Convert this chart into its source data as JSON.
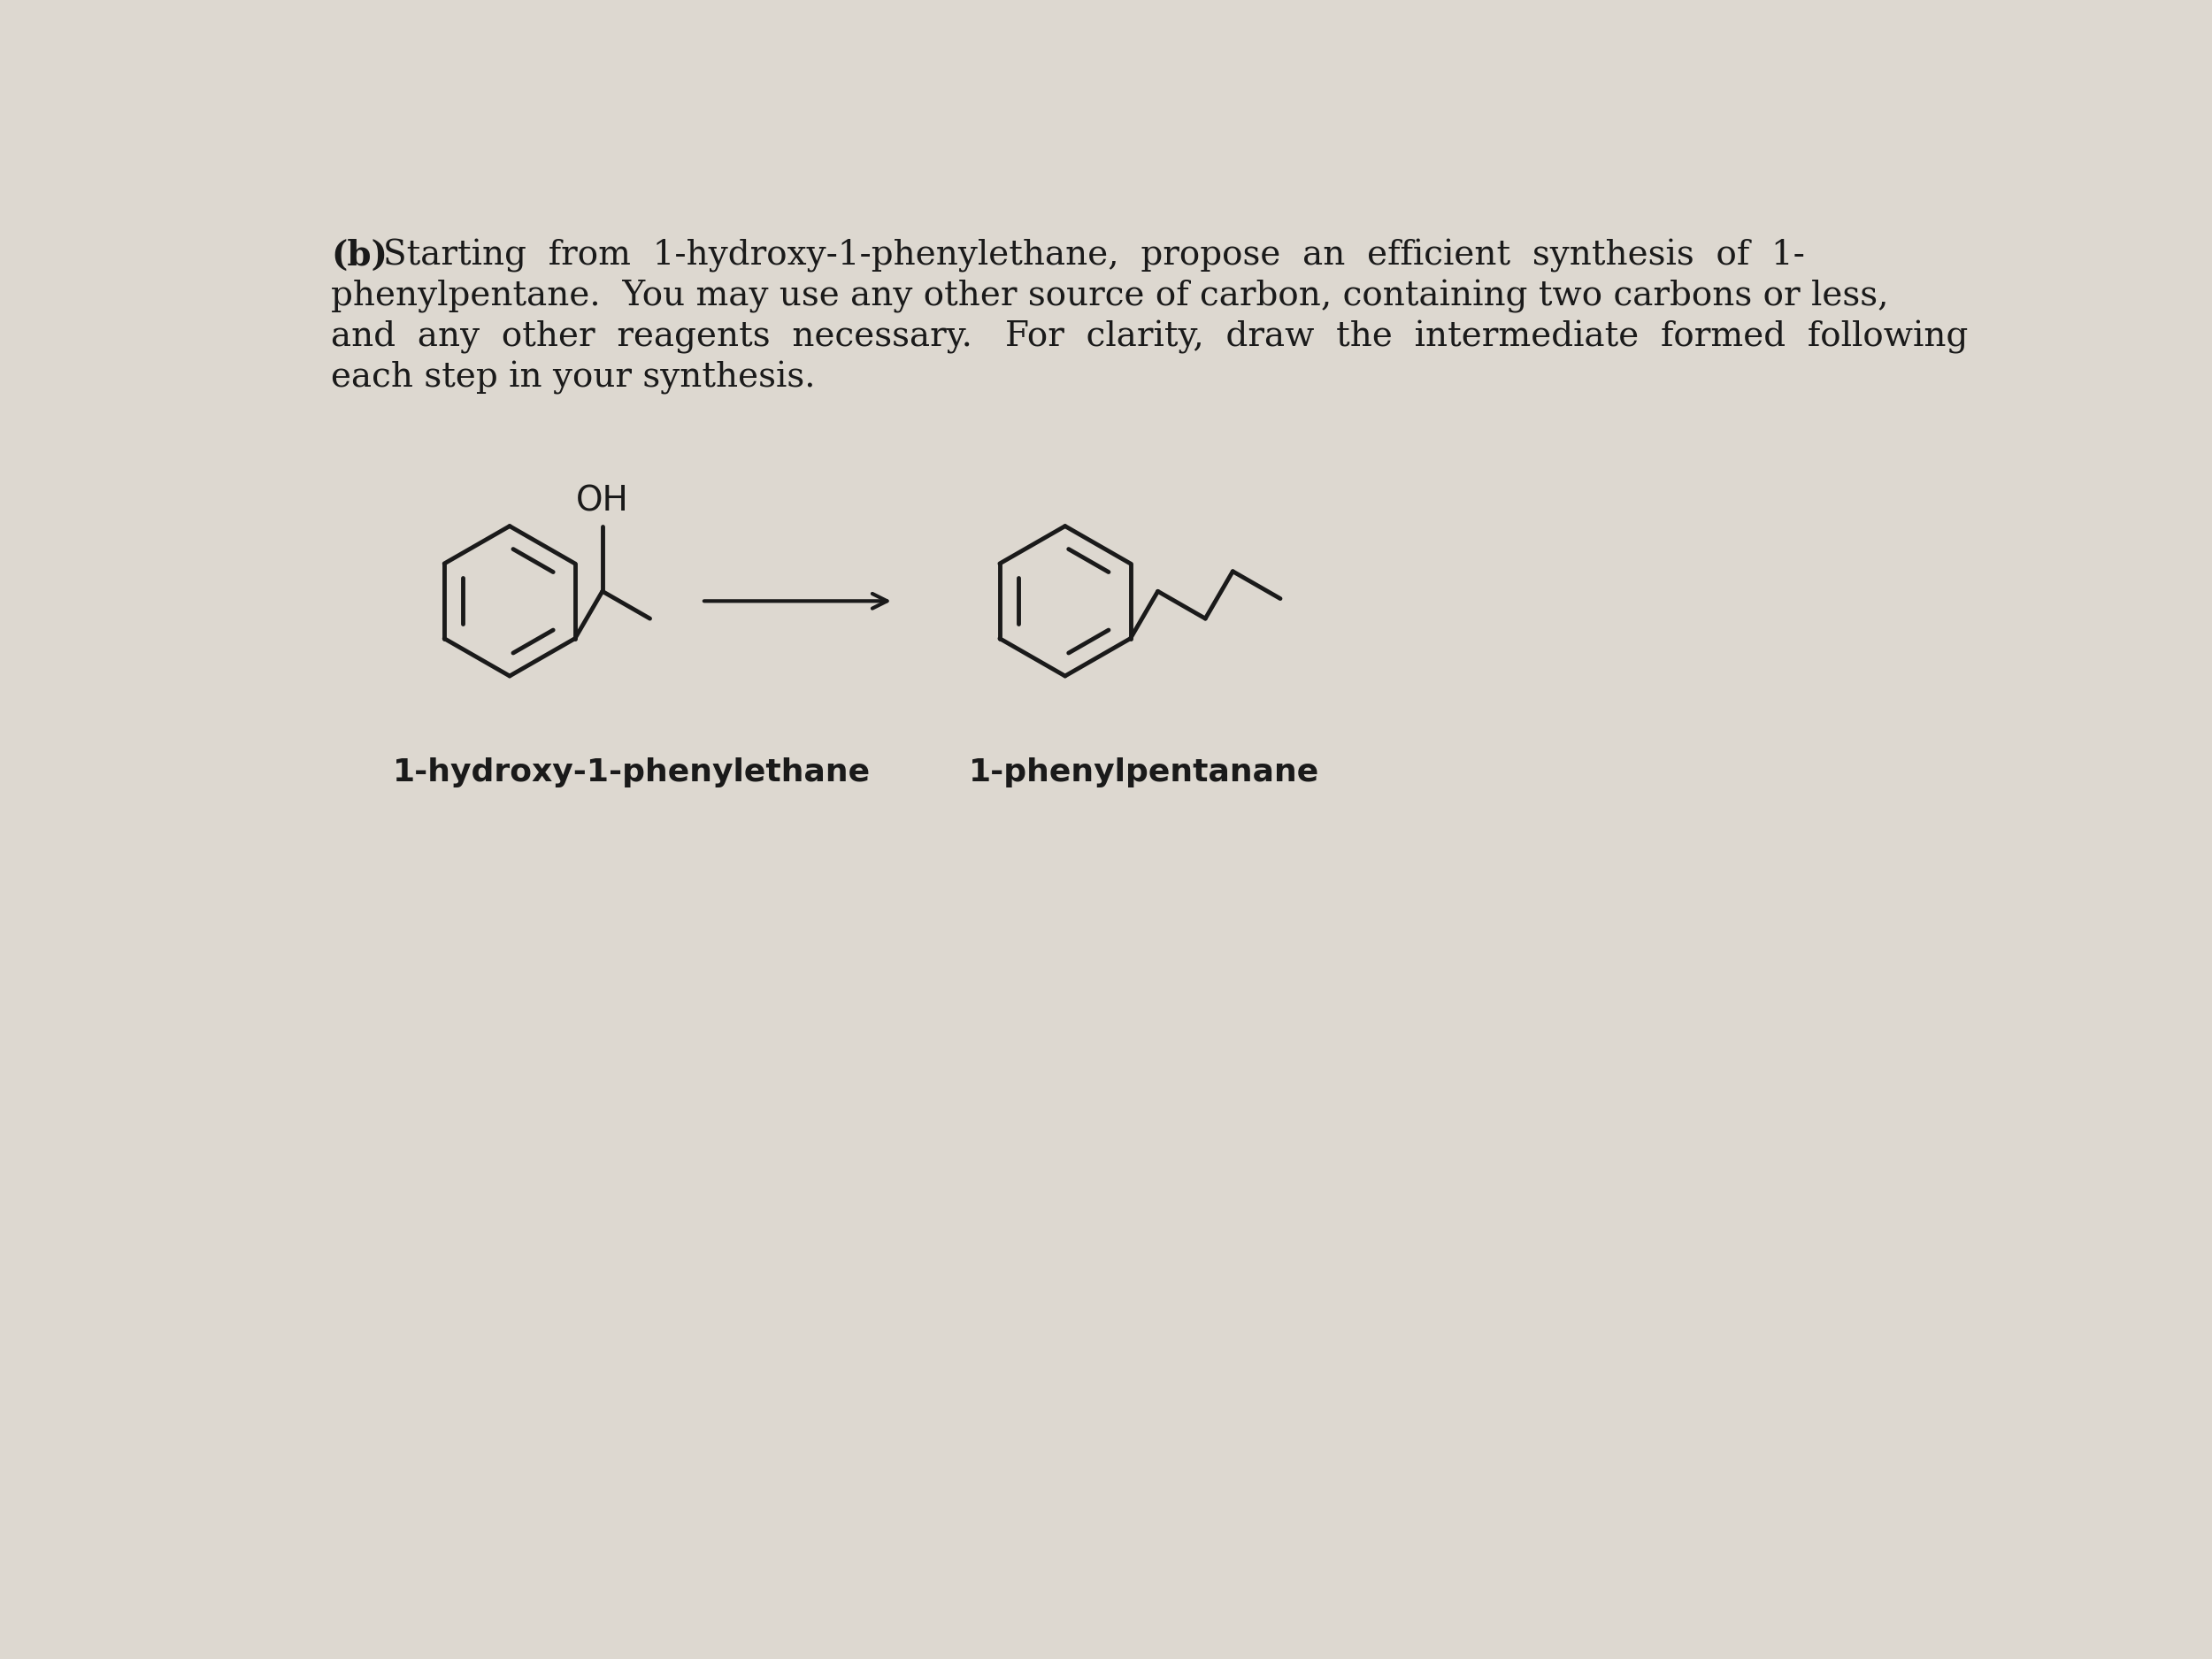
{
  "background_color": "#ddd8d0",
  "text_color": "#1a1a1a",
  "line_color": "#1a1a1a",
  "line1": "(b)  Starting  from  1-hydroxy-1-phenylethane,  propose  an  efficient  synthesis  of  1-",
  "line2": "phenylpentane.  You may use any other source of carbon, containing two carbons or less,",
  "line3": "and  any  other  reagents  necessary.   For  clarity,  draw  the  intermediate  formed  following",
  "line4": "each step in your synthesis.",
  "label_left": "1-hydroxy-1-phenylethane",
  "label_right": "1-phenylpentanane",
  "lw": 3.5,
  "text_fontsize": 28,
  "label_fontsize": 26
}
